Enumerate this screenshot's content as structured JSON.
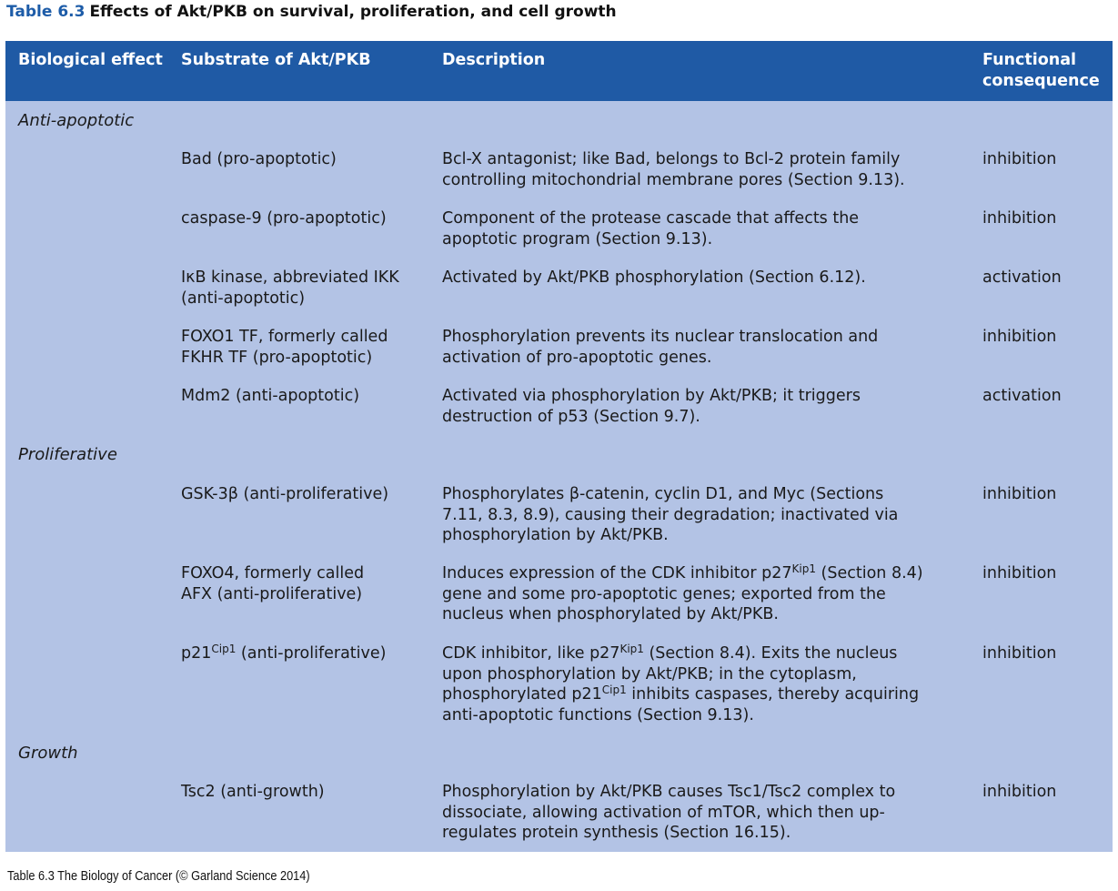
{
  "title": {
    "number": "Table 6.3",
    "text": "Effects of Akt/PKB on survival, proliferation, and cell growth"
  },
  "header": {
    "col1": "Biological effect",
    "col2": "Substrate of Akt/PKB",
    "col3": "Description",
    "col4": "Functional\nconsequence"
  },
  "sections": {
    "antiapoptotic": "Anti-apoptotic",
    "proliferative": "Proliferative",
    "growth": "Growth"
  },
  "rows": {
    "bad": {
      "substrate": "Bad (pro-apoptotic)",
      "description": "Bcl-X antagonist; like Bad, belongs to Bcl-2 protein family\ncontrolling mitochondrial membrane pores (Section 9.13).",
      "consequence": "inhibition"
    },
    "casp9": {
      "substrate": "caspase-9 (pro-apoptotic)",
      "description": "Component of the protease cascade that affects the\napoptotic program (Section 9.13).",
      "consequence": "inhibition"
    },
    "ikk": {
      "substrate": "IκB kinase, abbreviated IKK\n(anti-apoptotic)",
      "description": "Activated by Akt/PKB phosphorylation (Section 6.12).",
      "consequence": "activation"
    },
    "foxo1": {
      "substrate": "FOXO1 TF, formerly called\nFKHR TF (pro-apoptotic)",
      "description": "Phosphorylation prevents its nuclear translocation and\nactivation of pro-apoptotic genes.",
      "consequence": "inhibition"
    },
    "mdm2": {
      "substrate": "Mdm2 (anti-apoptotic)",
      "description": "Activated via phosphorylation by Akt/PKB; it triggers\ndestruction of p53 (Section 9.7).",
      "consequence": "activation"
    },
    "gsk": {
      "substrate": "GSK-3β (anti-proliferative)",
      "description": "Phosphorylates β-catenin, cyclin D1, and Myc (Sections\n7.11, 8.3, 8.9), causing their degradation; inactivated via\nphosphorylation by Akt/PKB.",
      "consequence": "inhibition"
    },
    "foxo4": {
      "substrate": "FOXO4, formerly called\nAFX (anti-proliferative)",
      "description_1": "Induces expression of the CDK inhibitor p27",
      "kip1": "Kip1",
      "description_2": " (Section 8.4)\ngene and some pro-apoptotic genes; exported from the\nnucleus when phosphorylated by Akt/PKB.",
      "consequence": "inhibition"
    },
    "p21": {
      "substrate_1": "p21",
      "cip1": "Cip1",
      "substrate_2": " (anti-proliferative)",
      "description_1": "CDK inhibitor, like p27",
      "kip1": "Kip1",
      "description_2": " (Section 8.4). Exits the nucleus\nupon phosphorylation by Akt/PKB; in the cytoplasm,\nphosphorylated p21",
      "cip1_b": "Cip1",
      "description_3": " inhibits caspases, thereby acquiring\nanti-apoptotic functions (Section 9.13).",
      "consequence": "inhibition"
    },
    "tsc2": {
      "substrate": "Tsc2 (anti-growth)",
      "description": "Phosphorylation by Akt/PKB causes Tsc1/Tsc2 complex to\ndissociate, allowing activation of mTOR, which then up-\nregulates protein synthesis (Section 16.15).",
      "consequence": "inhibition"
    }
  },
  "footer": "Table 6.3  The Biology of Cancer (© Garland Science 2014)",
  "colors": {
    "header_bg": "#1f5aa5",
    "body_bg": "#b3c3e5",
    "title_number": "#1d5ca8"
  }
}
